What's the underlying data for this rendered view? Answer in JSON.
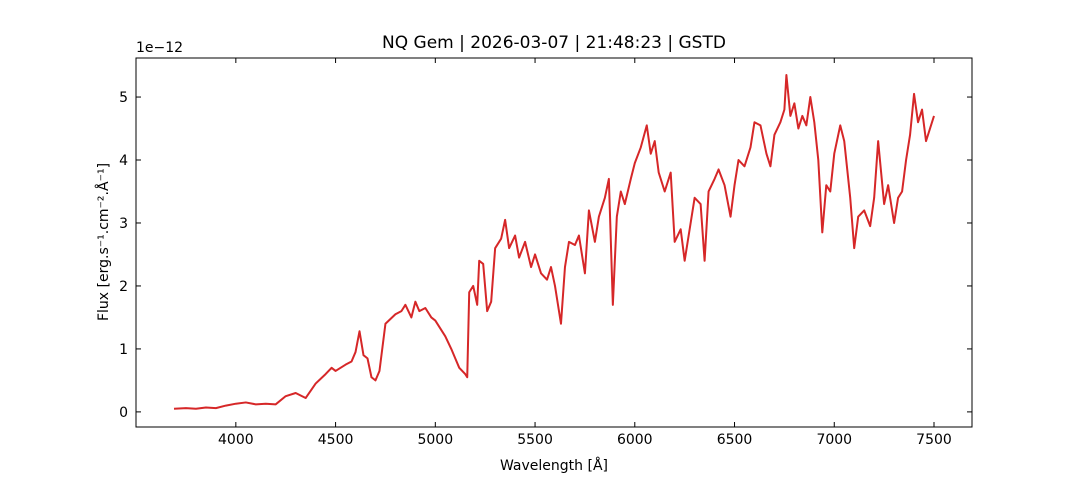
{
  "chart_data": {
    "type": "line",
    "title": "NQ Gem | 2026-03-07 | 21:48:23 | GSTD",
    "x_label": "Wavelength [Å]",
    "y_label": "Flux [erg.s⁻¹.cm⁻².Å⁻¹]",
    "y_offset_label": "1e−12",
    "xlim": [
      3499.5,
      7690.5
    ],
    "ylim": [
      -0.24,
      5.62
    ],
    "xticks": [
      4000,
      4500,
      5000,
      5500,
      6000,
      6500,
      7000,
      7500
    ],
    "yticks": [
      0,
      1,
      2,
      3,
      4,
      5
    ],
    "ticks_inside": true,
    "ticks_all_sides": true,
    "x": [
      3690,
      3750,
      3800,
      3850,
      3900,
      3950,
      4000,
      4050,
      4100,
      4150,
      4200,
      4250,
      4300,
      4350,
      4400,
      4450,
      4480,
      4500,
      4550,
      4580,
      4600,
      4620,
      4640,
      4660,
      4680,
      4700,
      4720,
      4750,
      4800,
      4830,
      4850,
      4880,
      4900,
      4920,
      4950,
      4980,
      5000,
      5050,
      5080,
      5100,
      5120,
      5150,
      5160,
      5170,
      5190,
      5210,
      5220,
      5240,
      5260,
      5280,
      5300,
      5330,
      5350,
      5370,
      5400,
      5420,
      5450,
      5480,
      5500,
      5530,
      5560,
      5580,
      5600,
      5630,
      5650,
      5670,
      5700,
      5720,
      5750,
      5770,
      5800,
      5820,
      5850,
      5870,
      5890,
      5910,
      5930,
      5950,
      5980,
      6000,
      6030,
      6060,
      6080,
      6100,
      6120,
      6150,
      6180,
      6200,
      6230,
      6250,
      6280,
      6300,
      6330,
      6350,
      6370,
      6400,
      6420,
      6450,
      6480,
      6500,
      6520,
      6550,
      6580,
      6600,
      6630,
      6660,
      6680,
      6700,
      6730,
      6750,
      6760,
      6780,
      6800,
      6820,
      6840,
      6860,
      6880,
      6900,
      6920,
      6940,
      6960,
      6980,
      7000,
      7030,
      7050,
      7080,
      7100,
      7120,
      7150,
      7180,
      7200,
      7220,
      7250,
      7270,
      7300,
      7320,
      7340,
      7360,
      7380,
      7400,
      7420,
      7440,
      7460,
      7480,
      7500
    ],
    "series": [
      {
        "color": "#d62728",
        "values": [
          0.05,
          0.06,
          0.05,
          0.07,
          0.06,
          0.1,
          0.13,
          0.15,
          0.12,
          0.13,
          0.12,
          0.25,
          0.3,
          0.22,
          0.45,
          0.6,
          0.7,
          0.65,
          0.75,
          0.8,
          0.95,
          1.28,
          0.9,
          0.85,
          0.55,
          0.5,
          0.65,
          1.4,
          1.55,
          1.6,
          1.7,
          1.5,
          1.75,
          1.6,
          1.65,
          1.5,
          1.45,
          1.2,
          1.0,
          0.85,
          0.7,
          0.6,
          0.55,
          1.9,
          2.0,
          1.7,
          2.4,
          2.35,
          1.6,
          1.75,
          2.6,
          2.75,
          3.05,
          2.6,
          2.8,
          2.45,
          2.7,
          2.3,
          2.5,
          2.2,
          2.1,
          2.3,
          2.0,
          1.4,
          2.3,
          2.7,
          2.65,
          2.8,
          2.2,
          3.2,
          2.7,
          3.1,
          3.4,
          3.7,
          1.7,
          3.1,
          3.5,
          3.3,
          3.7,
          3.95,
          4.2,
          4.55,
          4.1,
          4.3,
          3.8,
          3.5,
          3.8,
          2.7,
          2.9,
          2.4,
          3.0,
          3.4,
          3.3,
          2.4,
          3.5,
          3.7,
          3.85,
          3.6,
          3.1,
          3.6,
          4.0,
          3.9,
          4.2,
          4.6,
          4.55,
          4.1,
          3.9,
          4.4,
          4.6,
          4.8,
          5.35,
          4.7,
          4.9,
          4.5,
          4.7,
          4.55,
          5.0,
          4.6,
          4.0,
          2.85,
          3.6,
          3.5,
          4.1,
          4.55,
          4.3,
          3.4,
          2.6,
          3.1,
          3.2,
          2.95,
          3.4,
          4.3,
          3.3,
          3.6,
          3.0,
          3.4,
          3.5,
          4.0,
          4.4,
          5.05,
          4.6,
          4.8,
          4.3,
          4.5,
          4.7
        ]
      }
    ]
  }
}
